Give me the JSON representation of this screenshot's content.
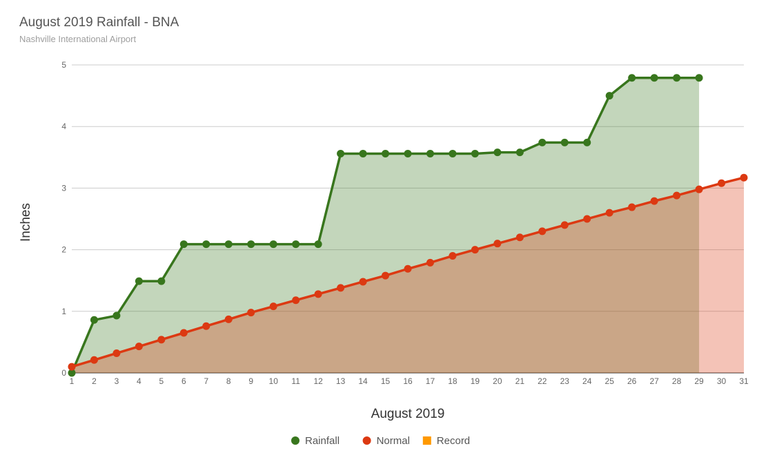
{
  "chart_data": {
    "type": "area",
    "title": "August 2019 Rainfall - BNA",
    "subtitle": "Nashville International Airport",
    "xlabel": "August 2019",
    "ylabel": "Inches",
    "xlim": [
      1,
      31
    ],
    "ylim": [
      0,
      5
    ],
    "x_ticks": [
      1,
      2,
      3,
      4,
      5,
      6,
      7,
      8,
      9,
      10,
      11,
      12,
      13,
      14,
      15,
      16,
      17,
      18,
      19,
      20,
      21,
      22,
      23,
      24,
      25,
      26,
      27,
      28,
      29,
      30,
      31
    ],
    "y_ticks": [
      0,
      1,
      2,
      3,
      4,
      5
    ],
    "grid": true,
    "legend_position": "bottom",
    "series": [
      {
        "name": "Rainfall",
        "color": "#38761d",
        "fill": "#c4d7bc",
        "x": [
          1,
          2,
          3,
          4,
          5,
          6,
          7,
          8,
          9,
          10,
          11,
          12,
          13,
          14,
          15,
          16,
          17,
          18,
          19,
          20,
          21,
          22,
          23,
          24,
          25,
          26,
          27,
          28,
          29
        ],
        "values": [
          0.0,
          0.86,
          0.93,
          1.49,
          1.49,
          2.09,
          2.09,
          2.09,
          2.09,
          2.09,
          2.09,
          2.09,
          3.56,
          3.56,
          3.56,
          3.56,
          3.56,
          3.56,
          3.56,
          3.58,
          3.58,
          3.74,
          3.74,
          3.74,
          4.5,
          4.79,
          4.79,
          4.79,
          4.79
        ]
      },
      {
        "name": "Normal",
        "color": "#dc3912",
        "fill": "#f4c2b8",
        "x": [
          1,
          2,
          3,
          4,
          5,
          6,
          7,
          8,
          9,
          10,
          11,
          12,
          13,
          14,
          15,
          16,
          17,
          18,
          19,
          20,
          21,
          22,
          23,
          24,
          25,
          26,
          27,
          28,
          29,
          30,
          31
        ],
        "values": [
          0.1,
          0.21,
          0.32,
          0.43,
          0.54,
          0.65,
          0.76,
          0.87,
          0.98,
          1.08,
          1.18,
          1.28,
          1.38,
          1.48,
          1.58,
          1.69,
          1.79,
          1.9,
          2.0,
          2.1,
          2.2,
          2.3,
          2.4,
          2.5,
          2.6,
          2.69,
          2.79,
          2.88,
          2.98,
          3.08,
          3.17
        ]
      },
      {
        "name": "Record",
        "color": "#ff9900",
        "fill": "#ffe0b2",
        "x": [],
        "values": []
      }
    ]
  }
}
